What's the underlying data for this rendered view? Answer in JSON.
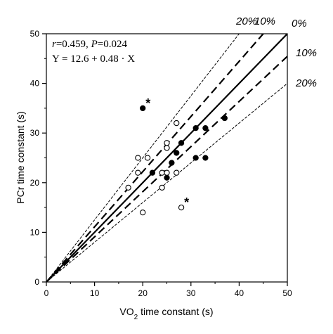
{
  "chart_data": {
    "type": "scatter",
    "xlabel_main": "VO",
    "xlabel_sub": "2",
    "xlabel_rest": " time constant (s)",
    "ylabel": "PCr time constant (s)",
    "xlim": [
      0,
      50
    ],
    "ylim": [
      0,
      50
    ],
    "xticks": [
      0,
      10,
      20,
      30,
      40,
      50
    ],
    "yticks": [
      0,
      10,
      20,
      30,
      40,
      50
    ],
    "grid": false,
    "annotation": {
      "r_label": "r",
      "r_value": "=0.459, ",
      "p_label": "P",
      "p_value": "=0.024",
      "equation": "Y = 12.6 + 0.48 · X"
    },
    "lines": [
      {
        "name": "0%",
        "slope": 1.0,
        "style": "solid",
        "width": 2.2
      },
      {
        "name": "10% upper",
        "slope": 1.111,
        "style": "dashed",
        "width": 2.2
      },
      {
        "name": "10% lower",
        "slope": 0.909,
        "style": "dashed",
        "width": 2.2
      },
      {
        "name": "20% upper",
        "slope": 1.25,
        "style": "thin-dashed",
        "width": 1
      },
      {
        "name": "20% lower",
        "slope": 0.8,
        "style": "thin-dashed",
        "width": 1
      }
    ],
    "line_labels": [
      {
        "text": "20%",
        "ref": "top-20"
      },
      {
        "text": "10%",
        "ref": "top-10"
      },
      {
        "text": "0%",
        "ref": "top-0"
      },
      {
        "text": "10%",
        "ref": "right-10"
      },
      {
        "text": "20%",
        "ref": "right-20"
      }
    ],
    "series": [
      {
        "fill": "filled",
        "points": [
          [
            20,
            35
          ],
          [
            22,
            22
          ],
          [
            25,
            21
          ],
          [
            26,
            24
          ],
          [
            27,
            26
          ],
          [
            28,
            28
          ],
          [
            31,
            31
          ],
          [
            31,
            25
          ],
          [
            33,
            31
          ],
          [
            33,
            25
          ],
          [
            37,
            33
          ]
        ]
      },
      {
        "fill": "open",
        "points": [
          [
            17,
            19
          ],
          [
            19,
            22
          ],
          [
            19,
            25
          ],
          [
            21,
            25
          ],
          [
            20,
            14
          ],
          [
            24,
            19
          ],
          [
            24,
            22
          ],
          [
            25,
            22
          ],
          [
            25,
            27
          ],
          [
            25,
            28
          ],
          [
            27,
            22
          ],
          [
            27,
            32
          ],
          [
            28,
            15
          ]
        ]
      }
    ],
    "star_marks": [
      {
        "text": "*",
        "x": 20,
        "y": 35
      },
      {
        "text": "*",
        "x": 28,
        "y": 15
      }
    ]
  }
}
